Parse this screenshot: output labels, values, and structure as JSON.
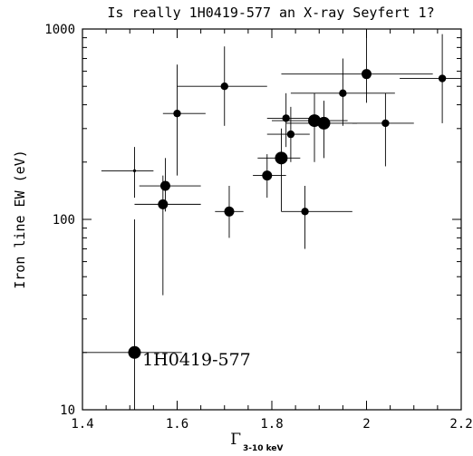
{
  "chart_data": {
    "type": "scatter",
    "title": "Is really 1H0419-577 an X-ray Seyfert 1?",
    "xlabel": "Γ",
    "xlabel_sub": "3-10 keV",
    "ylabel": "Iron line EW (eV)",
    "xlim": [
      1.4,
      2.2
    ],
    "ylim": [
      10,
      1000
    ],
    "yscale": "log",
    "grid": false,
    "xticks": [
      "1.4",
      "1.6",
      "1.8",
      "2",
      "2.2"
    ],
    "yticks": [
      "10",
      "100",
      "1000"
    ],
    "points": [
      {
        "x": 1.51,
        "y": 20,
        "xlo": 1.4,
        "xhi": 1.61,
        "ylo": 10,
        "yhi": 100,
        "size": "large"
      },
      {
        "x": 1.51,
        "y": 180,
        "xlo": 1.44,
        "xhi": 1.55,
        "ylo": 130,
        "yhi": 240,
        "size": "tiny"
      },
      {
        "x": 1.57,
        "y": 120,
        "xlo": 1.51,
        "xhi": 1.65,
        "ylo": 40,
        "yhi": 170,
        "size": "medium"
      },
      {
        "x": 1.575,
        "y": 150,
        "xlo": 1.52,
        "xhi": 1.65,
        "ylo": 110,
        "yhi": 210,
        "size": "medium"
      },
      {
        "x": 1.6,
        "y": 360,
        "xlo": 1.57,
        "xhi": 1.66,
        "ylo": 170,
        "yhi": 650,
        "size": "small"
      },
      {
        "x": 1.7,
        "y": 500,
        "xlo": 1.6,
        "xhi": 1.79,
        "ylo": 310,
        "yhi": 810,
        "size": "small"
      },
      {
        "x": 1.71,
        "y": 110,
        "xlo": 1.68,
        "xhi": 1.74,
        "ylo": 80,
        "yhi": 150,
        "size": "medium"
      },
      {
        "x": 1.79,
        "y": 170,
        "xlo": 1.76,
        "xhi": 1.83,
        "ylo": 130,
        "yhi": 220,
        "size": "medium"
      },
      {
        "x": 1.82,
        "y": 210,
        "xlo": 1.77,
        "xhi": 1.86,
        "ylo": 110,
        "yhi": 300,
        "size": "large"
      },
      {
        "x": 1.83,
        "y": 340,
        "xlo": 1.79,
        "xhi": 1.88,
        "ylo": 240,
        "yhi": 460,
        "size": "small"
      },
      {
        "x": 1.84,
        "y": 280,
        "xlo": 1.79,
        "xhi": 1.88,
        "ylo": 200,
        "yhi": 390,
        "size": "small"
      },
      {
        "x": 1.87,
        "y": 110,
        "xlo": 1.82,
        "xhi": 1.97,
        "ylo": 70,
        "yhi": 150,
        "size": "small"
      },
      {
        "x": 1.89,
        "y": 330,
        "xlo": 1.8,
        "xhi": 1.96,
        "ylo": 200,
        "yhi": 460,
        "size": "large"
      },
      {
        "x": 1.91,
        "y": 320,
        "xlo": 1.83,
        "xhi": 1.98,
        "ylo": 210,
        "yhi": 420,
        "size": "large"
      },
      {
        "x": 1.95,
        "y": 460,
        "xlo": 1.84,
        "xhi": 2.06,
        "ylo": 310,
        "yhi": 700,
        "size": "small"
      },
      {
        "x": 2.0,
        "y": 580,
        "xlo": 1.82,
        "xhi": 2.14,
        "ylo": 410,
        "yhi": 1000,
        "size": "medium"
      },
      {
        "x": 2.04,
        "y": 320,
        "xlo": 1.97,
        "xhi": 2.1,
        "ylo": 190,
        "yhi": 460,
        "size": "small"
      },
      {
        "x": 2.16,
        "y": 550,
        "xlo": 2.07,
        "xhi": 2.2,
        "ylo": 320,
        "yhi": 940,
        "size": "small"
      }
    ],
    "annotations": [
      {
        "text": "1H0419-577",
        "x": 1.515,
        "y": 17.5
      }
    ]
  }
}
